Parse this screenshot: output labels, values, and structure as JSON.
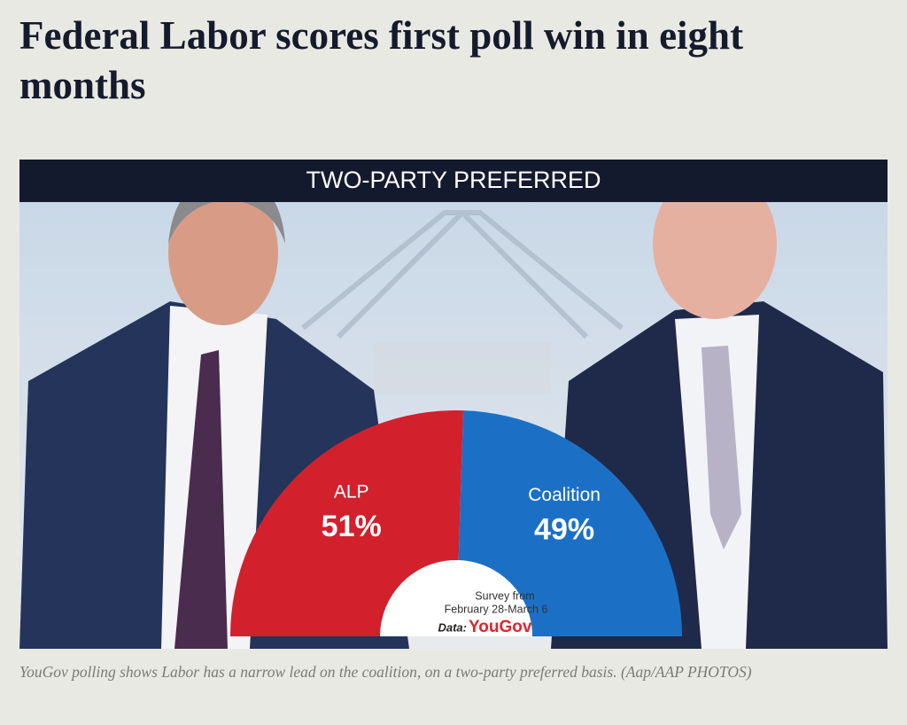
{
  "headline": "Federal Labor scores first poll win in eight months",
  "caption": "YouGov polling shows Labor has a narrow lead on the coalition, on a two-party preferred basis. (Aap/AAP PHOTOS)",
  "chart_data": {
    "type": "pie",
    "title": "TWO-PARTY PREFERRED",
    "categories": [
      "ALP",
      "Coalition"
    ],
    "values": [
      51,
      49
    ],
    "value_labels": [
      "51%",
      "49%"
    ],
    "colors": [
      "#d3202d",
      "#1b70c6"
    ],
    "notes": [
      "Survey from",
      "February 28-March 6"
    ],
    "source_label": "Data:",
    "source": "YouGov"
  }
}
